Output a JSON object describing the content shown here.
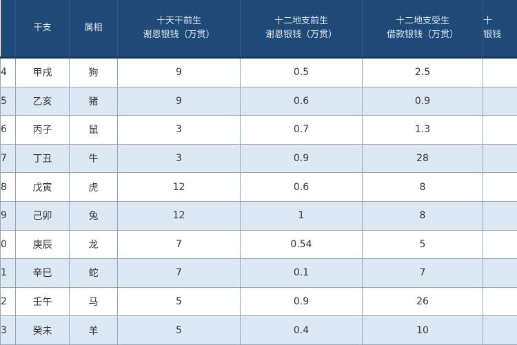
{
  "table": {
    "headers": [
      {
        "line1": "",
        "line2": ""
      },
      {
        "line1": "干支",
        "line2": ""
      },
      {
        "line1": "属相",
        "line2": ""
      },
      {
        "line1": "十天干前生",
        "line2": "谢恩银钱（万贯）"
      },
      {
        "line1": "十二地支前生",
        "line2": "谢恩银钱（万贯）"
      },
      {
        "line1": "十二地支受生",
        "line2": "借款银钱（万贯）"
      },
      {
        "line1": "十",
        "line2": "银钱"
      }
    ],
    "rows": [
      [
        "4",
        "甲戌",
        "狗",
        "9",
        "0.5",
        "2.5",
        ""
      ],
      [
        "5",
        "乙亥",
        "猪",
        "9",
        "0.6",
        "0.9",
        ""
      ],
      [
        "6",
        "丙子",
        "鼠",
        "3",
        "0.7",
        "1.3",
        ""
      ],
      [
        "7",
        "丁丑",
        "牛",
        "3",
        "0.9",
        "28",
        ""
      ],
      [
        "8",
        "戊寅",
        "虎",
        "12",
        "0.6",
        "8",
        ""
      ],
      [
        "9",
        "己卯",
        "兔",
        "12",
        "1",
        "8",
        ""
      ],
      [
        "0",
        "庚辰",
        "龙",
        "7",
        "0.54",
        "5",
        ""
      ],
      [
        "1",
        "辛巳",
        "蛇",
        "7",
        "0.1",
        "7",
        ""
      ],
      [
        "2",
        "壬午",
        "马",
        "5",
        "0.9",
        "26",
        ""
      ],
      [
        "3",
        "癸未",
        "羊",
        "5",
        "0.4",
        "10",
        ""
      ]
    ]
  },
  "colors": {
    "header_bg": "#1f4a78",
    "alt_row_bg": "#dce8f4"
  }
}
